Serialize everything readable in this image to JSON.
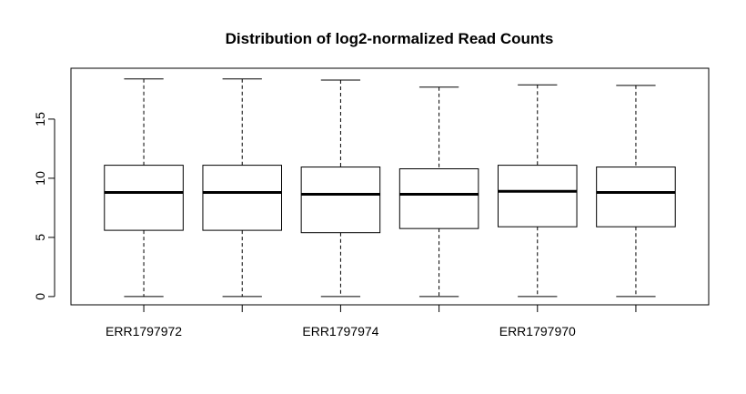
{
  "chart_data": {
    "type": "box",
    "title": "Distribution of log2-normalized Read Counts",
    "xlabel": "",
    "ylabel": "",
    "ylim": [
      -0.7,
      19.3
    ],
    "yticks": [
      0,
      5,
      10,
      15
    ],
    "categories": [
      "ERR1797972",
      "",
      "ERR1797974",
      "",
      "ERR1797970",
      ""
    ],
    "boxes": [
      {
        "min": 0.0,
        "q1": 5.6,
        "median": 8.8,
        "q3": 11.1,
        "max": 18.4
      },
      {
        "min": 0.0,
        "q1": 5.6,
        "median": 8.8,
        "q3": 11.1,
        "max": 18.4
      },
      {
        "min": 0.0,
        "q1": 5.4,
        "median": 8.65,
        "q3": 10.95,
        "max": 18.3
      },
      {
        "min": 0.0,
        "q1": 5.75,
        "median": 8.65,
        "q3": 10.8,
        "max": 17.7
      },
      {
        "min": 0.0,
        "q1": 5.9,
        "median": 8.9,
        "q3": 11.1,
        "max": 17.9
      },
      {
        "min": 0.0,
        "q1": 5.9,
        "median": 8.8,
        "q3": 10.95,
        "max": 17.85
      }
    ],
    "grid": false,
    "legend": "none"
  }
}
